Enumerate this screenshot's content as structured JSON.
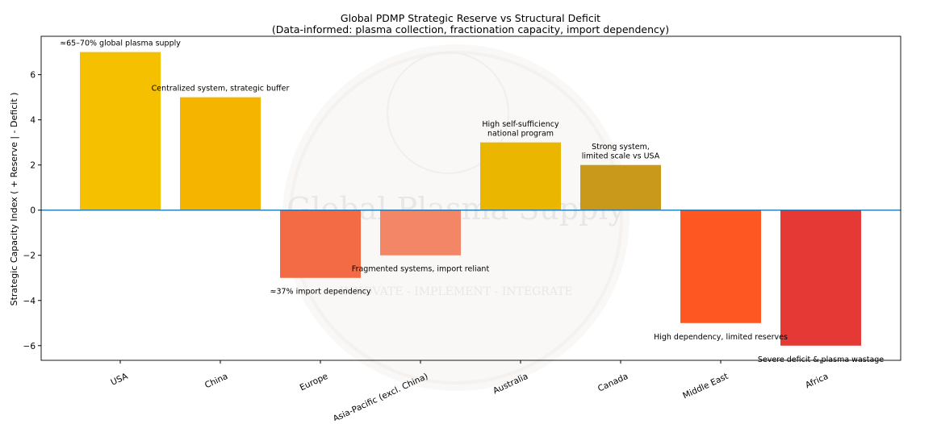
{
  "chart_data": {
    "type": "bar",
    "title": "Global PDMP Strategic Reserve vs Structural Deficit",
    "subtitle": "(Data-informed: plasma collection, fractionation capacity, import dependency)",
    "xlabel": "",
    "ylabel": "Strategic Capacity Index ( + Reserve | - Deficit )",
    "categories": [
      "USA",
      "China",
      "Europe",
      "Asia-Pacific (excl. China)",
      "Australia",
      "Canada",
      "Middle East",
      "Africa"
    ],
    "values": [
      7,
      5,
      -3,
      -2,
      3,
      2,
      -5,
      -6
    ],
    "colors": [
      "#f4c000",
      "#f5b400",
      "#f26b45",
      "#f48668",
      "#eab600",
      "#c9991c",
      "#ff5722",
      "#e53935"
    ],
    "annotations": [
      [
        "≈65–70% global plasma supply"
      ],
      [
        "Centralized system, strategic buffer"
      ],
      [
        "≈37% import dependency"
      ],
      [
        "Fragmented systems, import reliant"
      ],
      [
        "High self-sufficiency",
        "national program"
      ],
      [
        "Strong system,",
        "limited scale vs USA"
      ],
      [
        "High dependency, limited reserves"
      ],
      [
        "Severe deficit & plasma wastage"
      ]
    ],
    "yticks": [
      -6,
      -4,
      -2,
      0,
      2,
      4,
      6
    ],
    "ylim": [
      -6.65,
      7.7
    ],
    "zero_line_color": "#1f77b4",
    "grid": false,
    "watermark": {
      "text": "Global Plasma Supply",
      "tagline": "INNOVATE - IMPLEMENT - INTEGRATE"
    }
  }
}
